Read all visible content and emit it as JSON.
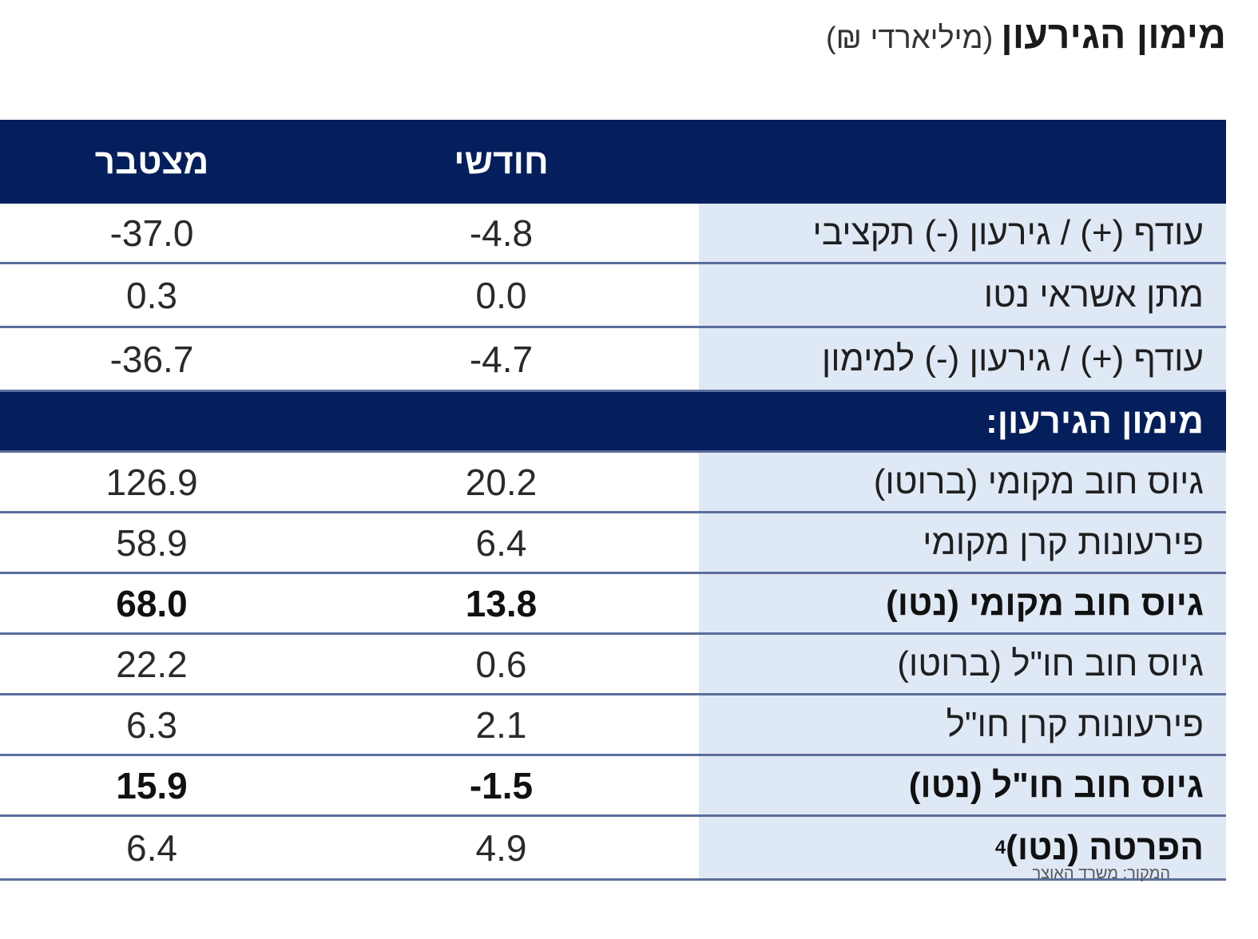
{
  "title": {
    "main": "מימון הגירעון",
    "unit": "(מיליארדי ₪)"
  },
  "header": {
    "label": "",
    "monthly": "חודשי",
    "cumulative": "מצטבר"
  },
  "rows": [
    {
      "label": "עודף (+) / גירעון (-) תקציבי",
      "monthly": "-4.8",
      "cumulative": "-37.0"
    },
    {
      "label": "מתן אשראי נטו",
      "monthly": "0.0",
      "cumulative": "0.3"
    },
    {
      "label": "עודף (+) / גירעון (-) למימון",
      "monthly": "-4.7",
      "cumulative": "-36.7"
    }
  ],
  "section": {
    "label": "מימון הגירעון:"
  },
  "financing_rows": [
    {
      "label": "גיוס חוב מקומי (ברוטו)",
      "monthly": "20.2",
      "cumulative": "126.9"
    },
    {
      "label": "פירעונות קרן מקומי",
      "monthly": "6.4",
      "cumulative": "58.9"
    },
    {
      "label": "גיוס חוב מקומי (נטו)",
      "monthly": "13.8",
      "cumulative": "68.0"
    },
    {
      "label": "גיוס חוב חו\"ל (ברוטו)",
      "monthly": "0.6",
      "cumulative": "22.2"
    },
    {
      "label": "פירעונות קרן חו\"ל",
      "monthly": "2.1",
      "cumulative": "6.3"
    },
    {
      "label": "גיוס חוב חו\"ל (נטו)",
      "monthly": "-1.5",
      "cumulative": "15.9"
    },
    {
      "label": "הפרטה (נטו)",
      "footnote": "4",
      "monthly": "4.9",
      "cumulative": "6.4"
    }
  ],
  "source": "המקור: משרד האוצר"
}
